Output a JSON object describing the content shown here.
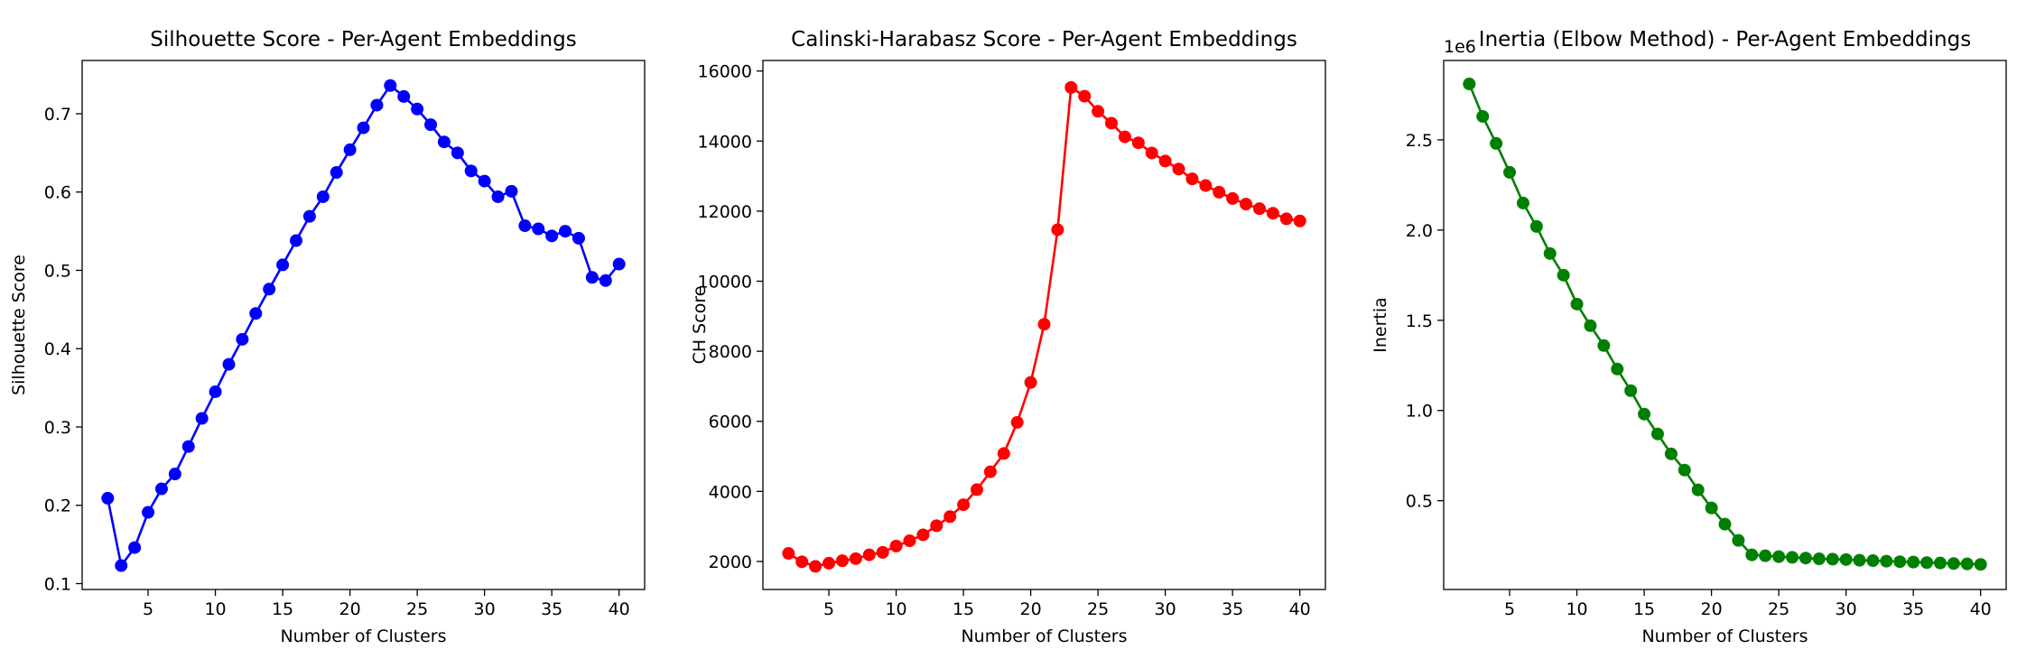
{
  "chart_data": [
    {
      "type": "line",
      "title": "Silhouette Score - Per-Agent Embeddings",
      "xlabel": "Number of Clusters",
      "ylabel": "Silhouette Score",
      "color": "#0000ff",
      "xlim": [
        0.1,
        41.9
      ],
      "ylim": [
        0.0925,
        0.768
      ],
      "xticks": [
        5,
        10,
        15,
        20,
        25,
        30,
        35,
        40
      ],
      "yticks": [
        0.1,
        0.2,
        0.3,
        0.4,
        0.5,
        0.6,
        0.7
      ],
      "yticklabels": [
        "0.1",
        "0.2",
        "0.3",
        "0.4",
        "0.5",
        "0.6",
        "0.7"
      ],
      "offset_label": "",
      "grid": false,
      "x": [
        2,
        3,
        4,
        5,
        6,
        7,
        8,
        9,
        10,
        11,
        12,
        13,
        14,
        15,
        16,
        17,
        18,
        19,
        20,
        21,
        22,
        23,
        24,
        25,
        26,
        27,
        28,
        29,
        30,
        31,
        32,
        33,
        34,
        35,
        36,
        37,
        38,
        39,
        40
      ],
      "y": [
        0.209,
        0.123,
        0.146,
        0.191,
        0.221,
        0.24,
        0.275,
        0.311,
        0.345,
        0.38,
        0.412,
        0.445,
        0.476,
        0.507,
        0.538,
        0.569,
        0.594,
        0.625,
        0.654,
        0.682,
        0.711,
        0.736,
        0.722,
        0.706,
        0.686,
        0.664,
        0.65,
        0.627,
        0.614,
        0.594,
        0.601,
        0.557,
        0.553,
        0.544,
        0.55,
        0.541,
        0.491,
        0.487,
        0.508
      ]
    },
    {
      "type": "line",
      "title": "Calinski-Harabasz Score - Per-Agent Embeddings",
      "xlabel": "Number of Clusters",
      "ylabel": "CH Score",
      "color": "#ff0000",
      "xlim": [
        0.1,
        41.9
      ],
      "ylim": [
        1200,
        16300
      ],
      "xticks": [
        5,
        10,
        15,
        20,
        25,
        30,
        35,
        40
      ],
      "yticks": [
        2000,
        4000,
        6000,
        8000,
        10000,
        12000,
        14000,
        16000
      ],
      "yticklabels": [
        "2000",
        "4000",
        "6000",
        "8000",
        "10000",
        "12000",
        "14000",
        "16000"
      ],
      "offset_label": "",
      "grid": false,
      "x": [
        2,
        3,
        4,
        5,
        6,
        7,
        8,
        9,
        10,
        11,
        12,
        13,
        14,
        15,
        16,
        17,
        18,
        19,
        20,
        21,
        22,
        23,
        24,
        25,
        26,
        27,
        28,
        29,
        30,
        31,
        32,
        33,
        34,
        35,
        36,
        37,
        38,
        39,
        40
      ],
      "y": [
        2230,
        1990,
        1860,
        1950,
        2020,
        2080,
        2190,
        2260,
        2440,
        2590,
        2760,
        3020,
        3280,
        3620,
        4050,
        4560,
        5080,
        5970,
        7110,
        8770,
        11470,
        15530,
        15280,
        14850,
        14510,
        14120,
        13950,
        13660,
        13430,
        13200,
        12920,
        12730,
        12540,
        12360,
        12200,
        12070,
        11940,
        11780,
        11720
      ]
    },
    {
      "type": "line",
      "title": "Inertia (Elbow Method) - Per-Agent Embeddings",
      "xlabel": "Number of Clusters",
      "ylabel": "Inertia",
      "color": "#008000",
      "xlim": [
        0.1,
        41.9
      ],
      "ylim": [
        0.008,
        2.94
      ],
      "xticks": [
        5,
        10,
        15,
        20,
        25,
        30,
        35,
        40
      ],
      "yticks": [
        0.5,
        1.0,
        1.5,
        2.0,
        2.5
      ],
      "yticklabels": [
        "0.5",
        "1.0",
        "1.5",
        "2.0",
        "2.5"
      ],
      "offset_label": "1e6",
      "grid": false,
      "x": [
        2,
        3,
        4,
        5,
        6,
        7,
        8,
        9,
        10,
        11,
        12,
        13,
        14,
        15,
        16,
        17,
        18,
        19,
        20,
        21,
        22,
        23,
        24,
        25,
        26,
        27,
        28,
        29,
        30,
        31,
        32,
        33,
        34,
        35,
        36,
        37,
        38,
        39,
        40
      ],
      "y": [
        2.81,
        2.63,
        2.48,
        2.32,
        2.15,
        2.02,
        1.87,
        1.75,
        1.59,
        1.47,
        1.36,
        1.23,
        1.11,
        0.98,
        0.87,
        0.76,
        0.67,
        0.56,
        0.46,
        0.37,
        0.28,
        0.2,
        0.195,
        0.19,
        0.186,
        0.182,
        0.178,
        0.176,
        0.174,
        0.17,
        0.168,
        0.165,
        0.162,
        0.16,
        0.157,
        0.155,
        0.152,
        0.15,
        0.147
      ]
    }
  ]
}
